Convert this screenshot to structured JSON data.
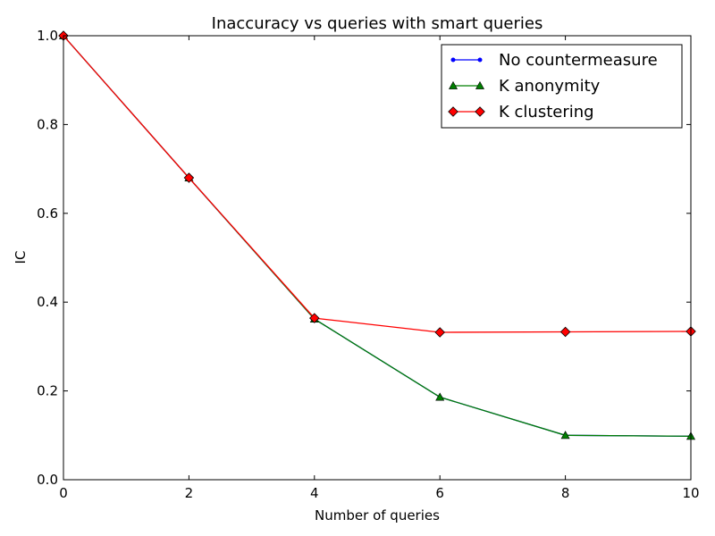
{
  "chart_data": {
    "type": "line",
    "title": "Inaccuracy vs queries with smart queries",
    "xlabel": "Number of queries",
    "ylabel": "IC",
    "xlim": [
      0,
      10
    ],
    "ylim": [
      0.0,
      1.0
    ],
    "x_ticks": [
      "0",
      "2",
      "4",
      "6",
      "8",
      "10"
    ],
    "y_ticks": [
      "0.0",
      "0.2",
      "0.4",
      "0.6",
      "0.8",
      "1.0"
    ],
    "grid": false,
    "legend_position": "top-right",
    "series": [
      {
        "name": "No countermeasure",
        "color": "#0000ff",
        "marker": "point",
        "x": [
          0,
          2,
          4,
          6,
          8,
          10
        ],
        "y": [
          1.0,
          0.68,
          0.362,
          0.186,
          0.1,
          0.098
        ]
      },
      {
        "name": "K anonymity",
        "color": "#007f00",
        "marker": "triangle",
        "x": [
          0,
          2,
          4,
          6,
          8,
          10
        ],
        "y": [
          1.0,
          0.68,
          0.362,
          0.186,
          0.1,
          0.098
        ]
      },
      {
        "name": "K clustering",
        "color": "#ff0000",
        "marker": "diamond",
        "x": [
          0,
          2,
          4,
          6,
          8,
          10
        ],
        "y": [
          1.0,
          0.68,
          0.364,
          0.332,
          0.333,
          0.334
        ]
      }
    ]
  }
}
